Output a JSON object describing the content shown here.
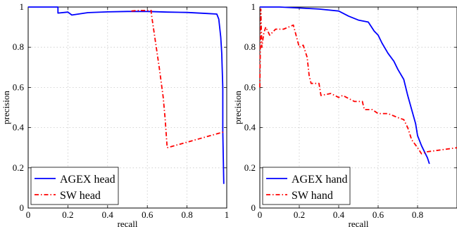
{
  "chart_data": [
    {
      "type": "line",
      "xlabel": "recall",
      "ylabel": "precision",
      "xlim": [
        0,
        1
      ],
      "ylim": [
        0,
        1
      ],
      "xticks": [
        "0",
        "0.2",
        "0.4",
        "0.6",
        "0.8",
        "1"
      ],
      "yticks": [
        "0",
        "0.2",
        "0.4",
        "0.6",
        "0.8",
        "1"
      ],
      "grid": true,
      "legend_position": "bottom-left",
      "series": [
        {
          "name": "AGEX head",
          "color": "#0000ff",
          "style": "solid",
          "points": [
            [
              0,
              1.0
            ],
            [
              0.15,
              1.0
            ],
            [
              0.15,
              0.97
            ],
            [
              0.2,
              0.975
            ],
            [
              0.22,
              0.96
            ],
            [
              0.3,
              0.972
            ],
            [
              0.4,
              0.976
            ],
            [
              0.5,
              0.978
            ],
            [
              0.6,
              0.978
            ],
            [
              0.7,
              0.975
            ],
            [
              0.8,
              0.973
            ],
            [
              0.9,
              0.968
            ],
            [
              0.95,
              0.965
            ],
            [
              0.96,
              0.94
            ],
            [
              0.97,
              0.85
            ],
            [
              0.975,
              0.77
            ],
            [
              0.977,
              0.7
            ],
            [
              0.98,
              0.6
            ],
            [
              0.98,
              0.38
            ],
            [
              0.985,
              0.12
            ]
          ]
        },
        {
          "name": "SW head",
          "color": "#ff0000",
          "style": "dashdot",
          "points": [
            [
              0.52,
              0.98
            ],
            [
              0.55,
              0.983
            ],
            [
              0.62,
              0.983
            ],
            [
              0.62,
              0.97
            ],
            [
              0.66,
              0.7
            ],
            [
              0.68,
              0.55
            ],
            [
              0.69,
              0.44
            ],
            [
              0.7,
              0.3
            ],
            [
              0.99,
              0.38
            ]
          ]
        }
      ]
    },
    {
      "type": "line",
      "xlabel": "recall",
      "ylabel": "precision",
      "xlim": [
        0,
        1
      ],
      "ylim": [
        0,
        1
      ],
      "xticks": [
        "0",
        "0.2",
        "0.4",
        "0.6",
        "0.8"
      ],
      "yticks": [
        "0",
        "0.2",
        "0.4",
        "0.6",
        "0.8",
        "1"
      ],
      "grid": true,
      "legend_position": "bottom-left",
      "series": [
        {
          "name": "AGEX hand",
          "color": "#0000ff",
          "style": "solid",
          "points": [
            [
              0,
              1.0
            ],
            [
              0.1,
              1.0
            ],
            [
              0.2,
              0.995
            ],
            [
              0.3,
              0.99
            ],
            [
              0.4,
              0.98
            ],
            [
              0.45,
              0.955
            ],
            [
              0.5,
              0.935
            ],
            [
              0.55,
              0.925
            ],
            [
              0.58,
              0.88
            ],
            [
              0.6,
              0.86
            ],
            [
              0.62,
              0.82
            ],
            [
              0.65,
              0.77
            ],
            [
              0.68,
              0.73
            ],
            [
              0.7,
              0.69
            ],
            [
              0.73,
              0.64
            ],
            [
              0.75,
              0.56
            ],
            [
              0.77,
              0.49
            ],
            [
              0.79,
              0.42
            ],
            [
              0.8,
              0.36
            ],
            [
              0.82,
              0.31
            ],
            [
              0.84,
              0.27
            ],
            [
              0.85,
              0.25
            ],
            [
              0.86,
              0.22
            ]
          ]
        },
        {
          "name": "SW hand",
          "color": "#ff0000",
          "style": "dashdot",
          "points": [
            [
              0,
              0.6
            ],
            [
              0.005,
              0.99
            ],
            [
              0.01,
              0.8
            ],
            [
              0.02,
              0.87
            ],
            [
              0.03,
              0.9
            ],
            [
              0.05,
              0.86
            ],
            [
              0.08,
              0.89
            ],
            [
              0.12,
              0.89
            ],
            [
              0.17,
              0.91
            ],
            [
              0.2,
              0.8
            ],
            [
              0.22,
              0.81
            ],
            [
              0.24,
              0.75
            ],
            [
              0.25,
              0.66
            ],
            [
              0.26,
              0.62
            ],
            [
              0.3,
              0.62
            ],
            [
              0.31,
              0.56
            ],
            [
              0.36,
              0.57
            ],
            [
              0.4,
              0.55
            ],
            [
              0.42,
              0.56
            ],
            [
              0.48,
              0.53
            ],
            [
              0.52,
              0.53
            ],
            [
              0.53,
              0.49
            ],
            [
              0.57,
              0.49
            ],
            [
              0.6,
              0.47
            ],
            [
              0.65,
              0.47
            ],
            [
              0.7,
              0.45
            ],
            [
              0.73,
              0.44
            ],
            [
              0.75,
              0.4
            ],
            [
              0.77,
              0.34
            ],
            [
              0.8,
              0.3
            ],
            [
              0.82,
              0.27
            ],
            [
              0.85,
              0.28
            ],
            [
              1.0,
              0.3
            ]
          ]
        }
      ]
    }
  ]
}
